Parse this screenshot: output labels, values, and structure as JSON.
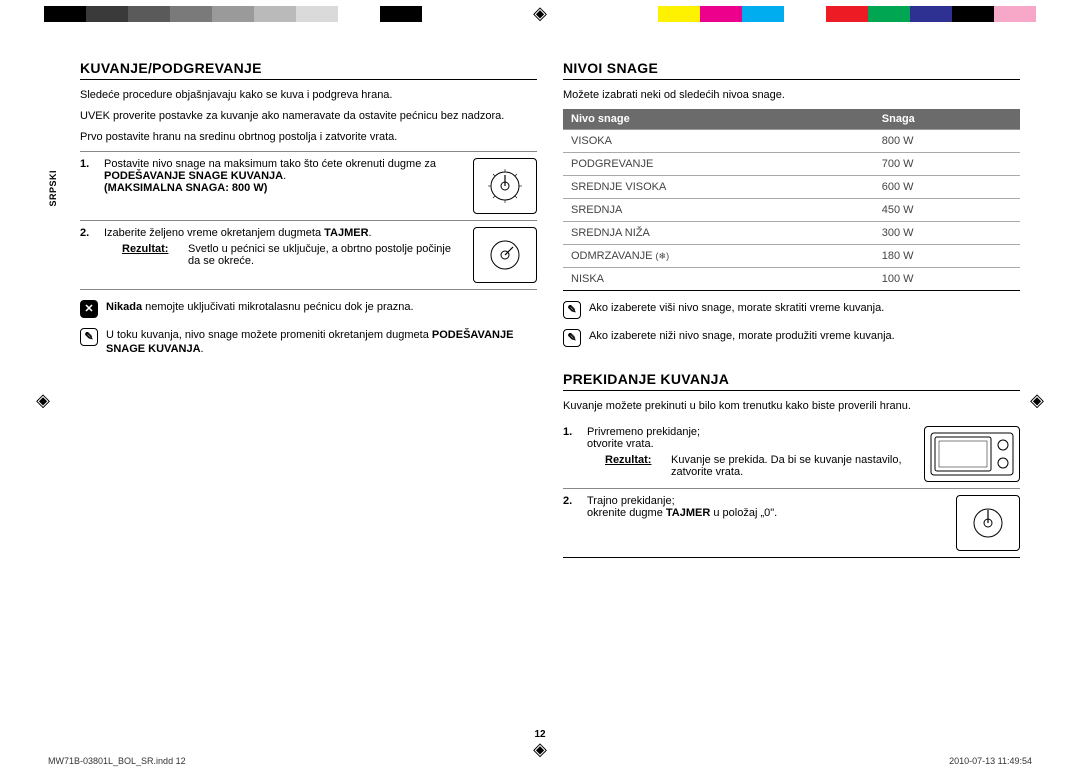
{
  "colorBarLeft": [
    "#000000",
    "#3a3a3a",
    "#5a5a5a",
    "#7a7a7a",
    "#9a9a9a",
    "#bababa",
    "#dadada",
    "#ffffff",
    "#000000"
  ],
  "colorBarRight": [
    "#fff200",
    "#ec008c",
    "#00aeef",
    "#ffffff",
    "#ed1c24",
    "#00a651",
    "#2e3192",
    "#000000",
    "#f7a8c9"
  ],
  "sideLabel": "SRPSKI",
  "left": {
    "h1": "KUVANJE/PODGREVANJE",
    "intro1": "Sledeće procedure objašnjavaju kako se kuva i podgreva hrana.",
    "intro2": "UVEK proverite postavke za kuvanje ako nameravate da ostavite pećnicu bez nadzora.",
    "intro3": "Prvo postavite hranu na sredinu obrtnog postolja i zatvorite vrata.",
    "step1_num": "1.",
    "step1_a": "Postavite nivo snage na maksimum tako što ćete okrenuti dugme za ",
    "step1_b": "PODEŠAVANJE SNAGE KUVANJA",
    "step1_c": ".",
    "step1_d": "(MAKSIMALNA SNAGA: 800 W)",
    "step2_num": "2.",
    "step2_a": "Izaberite željeno vreme okretanjem dugmeta ",
    "step2_b": "TAJMER",
    "step2_c": ".",
    "rezultat_label": "Rezultat:",
    "step2_res": "Svetlo u pećnici se uključuje, a obrtno postolje počinje da se okreće.",
    "note1_a": "Nikada",
    "note1_b": " nemojte uključivati mikrotalasnu pećnicu dok je prazna.",
    "note2_a": "U toku kuvanja, nivo snage možete promeniti okretanjem dugmeta ",
    "note2_b": "PODEŠAVANJE SNAGE KUVANJA",
    "note2_c": "."
  },
  "right": {
    "h1": "NIVOI SNAGE",
    "intro": "Možete izabrati neki od sledećih nivoa snage.",
    "th1": "Nivo snage",
    "th2": "Snaga",
    "rows": [
      {
        "label": "VISOKA",
        "val": "800 W"
      },
      {
        "label": "PODGREVANJE",
        "val": "700 W"
      },
      {
        "label": "SREDNJE VISOKA",
        "val": "600 W"
      },
      {
        "label": "SREDNJA",
        "val": "450 W"
      },
      {
        "label": "SREDNJA NIŽA",
        "val": "300 W"
      },
      {
        "label": "ODMRZAVANJE",
        "val": "180 W",
        "icon": true
      },
      {
        "label": "NISKA",
        "val": "100 W"
      }
    ],
    "tip1": "Ako izaberete viši nivo snage, morate skratiti vreme kuvanja.",
    "tip2": "Ako izaberete niži nivo snage, morate produžiti vreme kuvanja.",
    "h2": "PREKIDANJE KUVANJA",
    "intro2": "Kuvanje možete prekinuti u bilo kom trenutku kako biste proverili hranu.",
    "p1_num": "1.",
    "p1_a": "Privremeno prekidanje;",
    "p1_b": "otvorite vrata.",
    "p1_res": "Kuvanje se prekida. Da bi se kuvanje nastavilo, zatvorite vrata.",
    "p2_num": "2.",
    "p2_a": "Trajno prekidanje;",
    "p2_b_1": "okrenite dugme ",
    "p2_b_2": "TAJMER",
    "p2_b_3": " u položaj „0\"."
  },
  "pageNum": "12",
  "footerLeft": "MW71B-03801L_BOL_SR.indd   12",
  "footerRight": "2010-07-13      11:49:54",
  "colors": {
    "tableHeaderBg": "#6b6b6b",
    "tableHeaderFg": "#ffffff",
    "cellFg": "#444444",
    "ruleColor": "#aaaaaa"
  }
}
